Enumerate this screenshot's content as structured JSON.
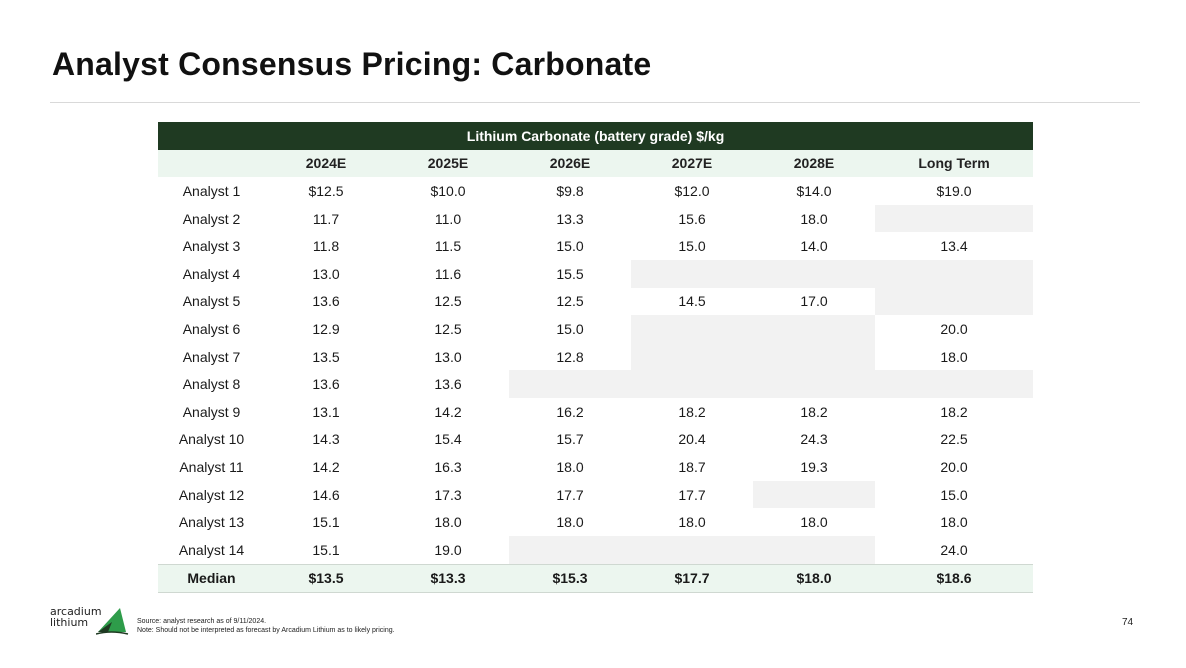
{
  "slide": {
    "title": "Analyst Consensus Pricing: Carbonate",
    "page_number": "74"
  },
  "table": {
    "band_label": "Lithium Carbonate (battery grade) $/kg",
    "columns": [
      "",
      "2024E",
      "2025E",
      "2026E",
      "2027E",
      "2028E",
      "Long Term"
    ],
    "rows": [
      {
        "label": "Analyst 1",
        "values": [
          "$12.5",
          "$10.0",
          "$9.8",
          "$12.0",
          "$14.0",
          "$19.0"
        ]
      },
      {
        "label": "Analyst 2",
        "values": [
          "11.7",
          "11.0",
          "13.3",
          "15.6",
          "18.0",
          ""
        ]
      },
      {
        "label": "Analyst 3",
        "values": [
          "11.8",
          "11.5",
          "15.0",
          "15.0",
          "14.0",
          "13.4"
        ]
      },
      {
        "label": "Analyst 4",
        "values": [
          "13.0",
          "11.6",
          "15.5",
          "",
          "",
          ""
        ]
      },
      {
        "label": "Analyst 5",
        "values": [
          "13.6",
          "12.5",
          "12.5",
          "14.5",
          "17.0",
          ""
        ]
      },
      {
        "label": "Analyst 6",
        "values": [
          "12.9",
          "12.5",
          "15.0",
          "",
          "",
          "20.0"
        ]
      },
      {
        "label": "Analyst 7",
        "values": [
          "13.5",
          "13.0",
          "12.8",
          "",
          "",
          "18.0"
        ]
      },
      {
        "label": "Analyst 8",
        "values": [
          "13.6",
          "13.6",
          "",
          "",
          "",
          ""
        ]
      },
      {
        "label": "Analyst 9",
        "values": [
          "13.1",
          "14.2",
          "16.2",
          "18.2",
          "18.2",
          "18.2"
        ]
      },
      {
        "label": "Analyst 10",
        "values": [
          "14.3",
          "15.4",
          "15.7",
          "20.4",
          "24.3",
          "22.5"
        ]
      },
      {
        "label": "Analyst 11",
        "values": [
          "14.2",
          "16.3",
          "18.0",
          "18.7",
          "19.3",
          "20.0"
        ]
      },
      {
        "label": "Analyst 12",
        "values": [
          "14.6",
          "17.3",
          "17.7",
          "17.7",
          "",
          "15.0"
        ]
      },
      {
        "label": "Analyst 13",
        "values": [
          "15.1",
          "18.0",
          "18.0",
          "18.0",
          "18.0",
          "18.0"
        ]
      },
      {
        "label": "Analyst 14",
        "values": [
          "15.1",
          "19.0",
          "",
          "",
          "",
          "24.0"
        ]
      }
    ],
    "median": {
      "label": "Median",
      "values": [
        "$13.5",
        "$13.3",
        "$15.3",
        "$17.7",
        "$18.0",
        "$18.6"
      ]
    }
  },
  "footer": {
    "logo_line1": "arcadium",
    "logo_line2": "lithium",
    "source_line": "Source: analyst research as of 9/11/2024.",
    "note_line": "Note: Should not be interpreted as forecast by Arcadium Lithium as to likely pricing."
  },
  "colors": {
    "band": "#1f3a22",
    "header_tint": "#ecf6ef",
    "empty_cell": "#f2f2f2",
    "logo_green": "#2e9c4a"
  }
}
